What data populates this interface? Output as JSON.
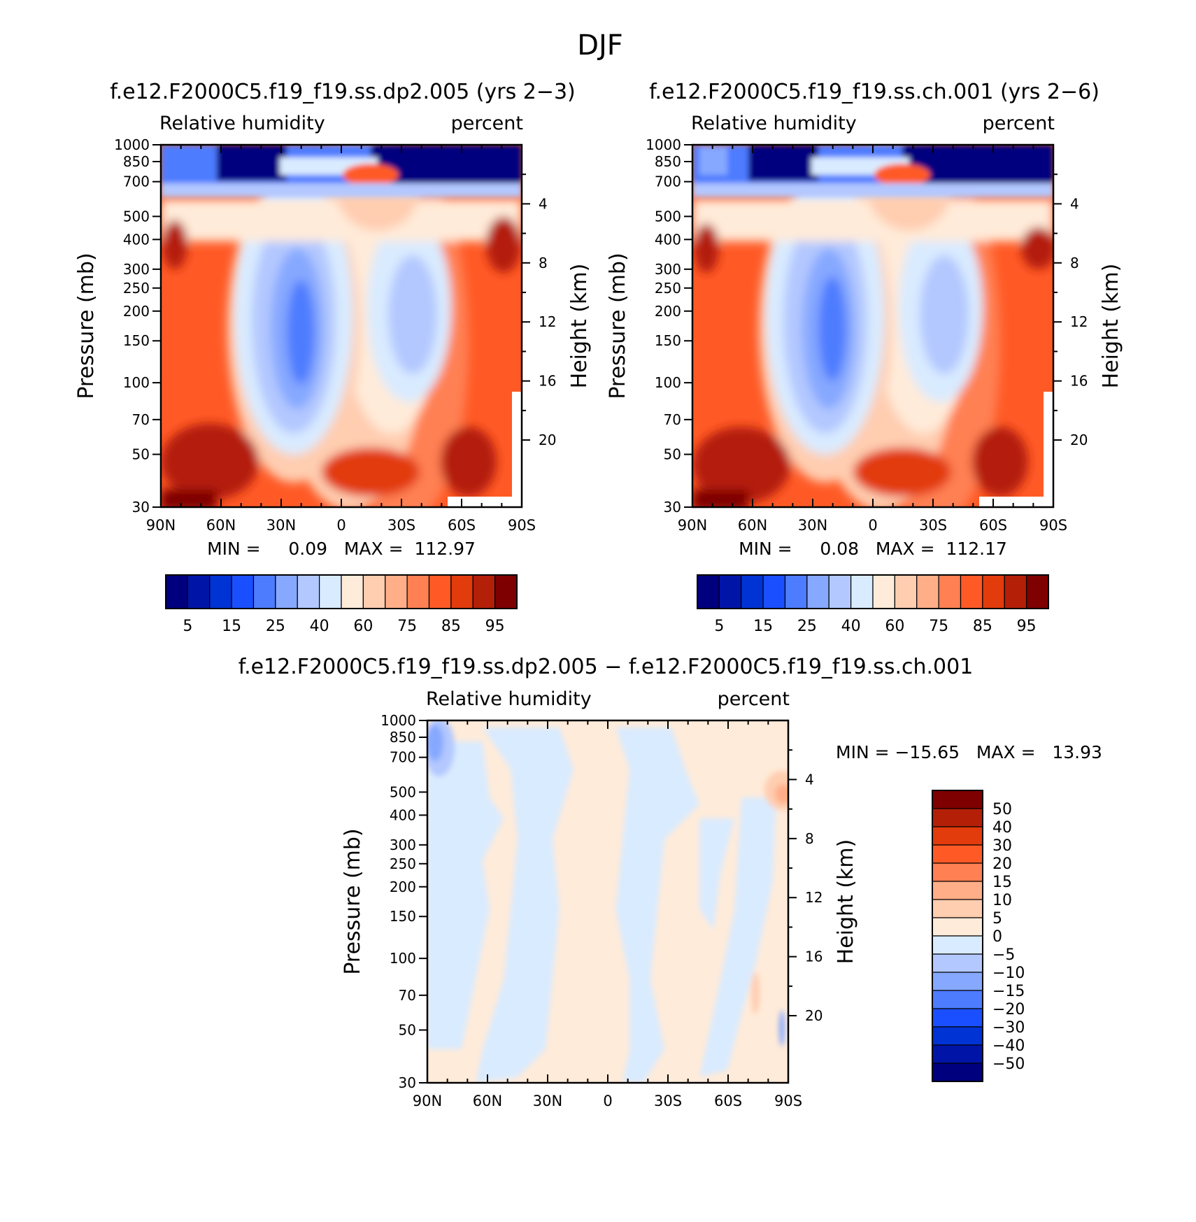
{
  "figure": {
    "title": "DJF"
  },
  "chart_data": [
    {
      "type": "heatmap",
      "title": "f.e12.F2000C5.f19_f19.ss.dp2.005 (yrs 2−3)",
      "left_label": "Relative humidity",
      "right_label": "percent",
      "xlabel": "",
      "ylabel": "Pressure (mb)",
      "y2label": "Height (km)",
      "x_ticks": [
        "90N",
        "60N",
        "30N",
        "0",
        "30S",
        "60S",
        "90S"
      ],
      "y_ticks": [
        "30",
        "50",
        "70",
        "100",
        "150",
        "200",
        "250",
        "300",
        "400",
        "500",
        "700",
        "850",
        "1000"
      ],
      "y2_ticks": [
        "20",
        "16",
        "12",
        "8",
        "4"
      ],
      "xlim": [
        90,
        -90
      ],
      "ylim": [
        1000,
        30
      ],
      "y_scale": "log",
      "stats": "MIN =     0.09   MAX =  112.97",
      "min": 0.09,
      "max": 112.97,
      "colorbar": {
        "orientation": "horizontal",
        "levels": [
          5,
          10,
          15,
          20,
          25,
          30,
          40,
          50,
          60,
          70,
          75,
          80,
          85,
          90,
          95
        ],
        "labels": [
          "5",
          "15",
          "25",
          "40",
          "60",
          "75",
          "85",
          "95"
        ],
        "colors": [
          "#00007f",
          "#0015a8",
          "#0033d4",
          "#1a4fff",
          "#4d7cff",
          "#86a8ff",
          "#b3c8ff",
          "#d9ebff",
          "#ffebd9",
          "#ffcdb0",
          "#ffae88",
          "#ff8052",
          "#ff5a26",
          "#e23b0c",
          "#b41f08",
          "#7f0000"
        ]
      }
    },
    {
      "type": "heatmap",
      "title": "f.e12.F2000C5.f19_f19.ss.ch.001 (yrs 2−6)",
      "left_label": "Relative humidity",
      "right_label": "percent",
      "xlabel": "",
      "ylabel": "Pressure (mb)",
      "y2label": "Height (km)",
      "x_ticks": [
        "90N",
        "60N",
        "30N",
        "0",
        "30S",
        "60S",
        "90S"
      ],
      "y_ticks": [
        "30",
        "50",
        "70",
        "100",
        "150",
        "200",
        "250",
        "300",
        "400",
        "500",
        "700",
        "850",
        "1000"
      ],
      "y2_ticks": [
        "20",
        "16",
        "12",
        "8",
        "4"
      ],
      "xlim": [
        90,
        -90
      ],
      "ylim": [
        1000,
        30
      ],
      "y_scale": "log",
      "stats": "MIN =     0.08   MAX =  112.17",
      "min": 0.08,
      "max": 112.17,
      "colorbar": {
        "orientation": "horizontal",
        "levels": [
          5,
          10,
          15,
          20,
          25,
          30,
          40,
          50,
          60,
          70,
          75,
          80,
          85,
          90,
          95
        ],
        "labels": [
          "5",
          "15",
          "25",
          "40",
          "60",
          "75",
          "85",
          "95"
        ],
        "colors": [
          "#00007f",
          "#0015a8",
          "#0033d4",
          "#1a4fff",
          "#4d7cff",
          "#86a8ff",
          "#b3c8ff",
          "#d9ebff",
          "#ffebd9",
          "#ffcdb0",
          "#ffae88",
          "#ff8052",
          "#ff5a26",
          "#e23b0c",
          "#b41f08",
          "#7f0000"
        ]
      }
    },
    {
      "type": "heatmap",
      "title": "f.e12.F2000C5.f19_f19.ss.dp2.005 − f.e12.F2000C5.f19_f19.ss.ch.001",
      "left_label": "Relative humidity",
      "right_label": "percent",
      "xlabel": "",
      "ylabel": "Pressure (mb)",
      "y2label": "Height (km)",
      "x_ticks": [
        "90N",
        "60N",
        "30N",
        "0",
        "30S",
        "60S",
        "90S"
      ],
      "y_ticks": [
        "30",
        "50",
        "70",
        "100",
        "150",
        "200",
        "250",
        "300",
        "400",
        "500",
        "700",
        "850",
        "1000"
      ],
      "y2_ticks": [
        "20",
        "16",
        "12",
        "8",
        "4"
      ],
      "xlim": [
        90,
        -90
      ],
      "ylim": [
        1000,
        30
      ],
      "y_scale": "log",
      "stats": "MIN = −15.65   MAX =   13.93",
      "min": -15.65,
      "max": 13.93,
      "colorbar": {
        "orientation": "vertical",
        "levels": [
          50,
          40,
          30,
          20,
          15,
          10,
          5,
          0,
          -5,
          -10,
          -15,
          -20,
          -30,
          -40,
          -50
        ],
        "labels": [
          "50",
          "40",
          "30",
          "20",
          "15",
          "10",
          "5",
          "0",
          "−5",
          "−10",
          "−15",
          "−20",
          "−30",
          "−40",
          "−50"
        ],
        "colors": [
          "#7f0000",
          "#b41f08",
          "#e23b0c",
          "#ff5a26",
          "#ff8052",
          "#ffae88",
          "#ffcdb0",
          "#ffebd9",
          "#d9ebff",
          "#b3c8ff",
          "#86a8ff",
          "#4d7cff",
          "#1a4fff",
          "#0033d4",
          "#0015a8",
          "#00007f"
        ]
      }
    }
  ]
}
